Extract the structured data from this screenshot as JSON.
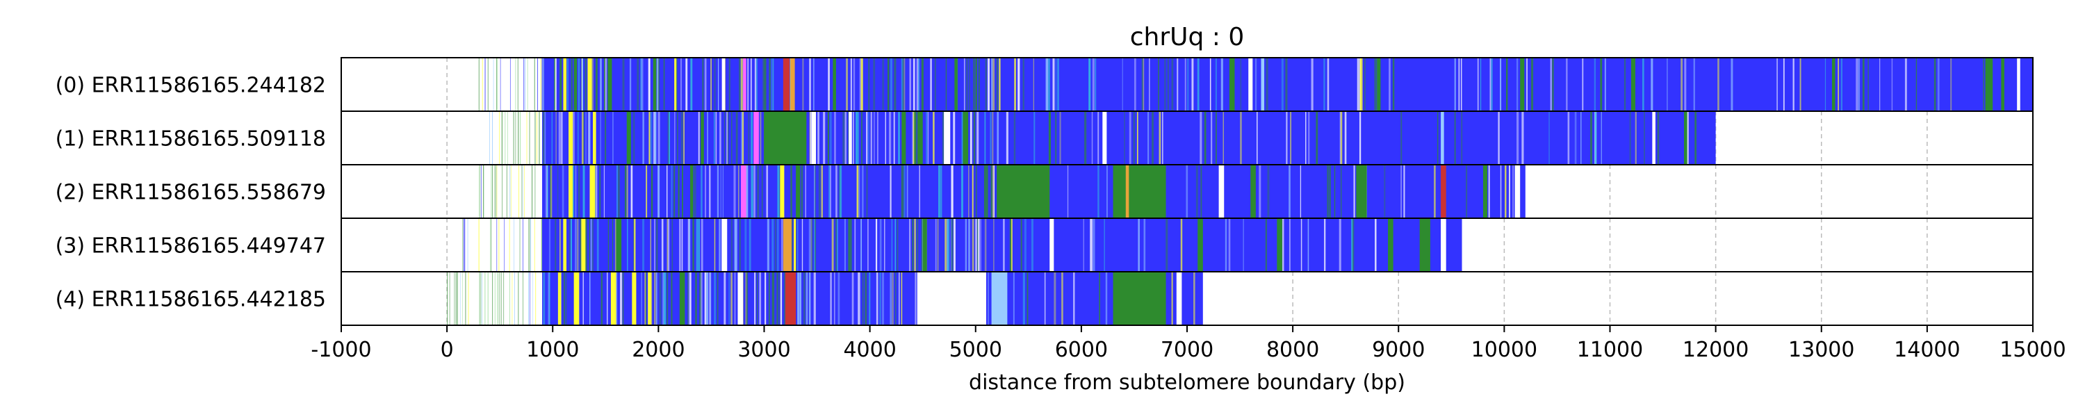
{
  "chart_data": {
    "type": "heatmap",
    "title": "chrUq : 0",
    "xlabel": "distance from subtelomere boundary (bp)",
    "ylabel": "",
    "xlim": [
      -1000,
      15000
    ],
    "x_ticks": [
      -1000,
      0,
      1000,
      2000,
      3000,
      4000,
      5000,
      6000,
      7000,
      8000,
      9000,
      10000,
      11000,
      12000,
      13000,
      14000,
      15000
    ],
    "x_tick_labels": [
      "-1000",
      "0",
      "1000",
      "2000",
      "3000",
      "4000",
      "5000",
      "6000",
      "7000",
      "8000",
      "9000",
      "10000",
      "11000",
      "12000",
      "13000",
      "14000",
      "15000"
    ],
    "grid": "vertical dashed at x ticks",
    "colors": {
      "blue": "#3333ff",
      "green": "#2e8b2e",
      "yellow": "#ffff33",
      "orange": "#e8a33a",
      "magenta": "#ff66ff",
      "red": "#cc3333",
      "white": "#ffffff",
      "lightblue": "#99ccff",
      "cyan": "#33ccdd",
      "lightgreen": "#99dd99",
      "grid": "#bbbbbb",
      "frame": "#000000"
    },
    "series": [
      {
        "name": "(0) ERR11586165.244182",
        "read_start": 300,
        "read_end": 15000,
        "sparse_end": 900,
        "blocks": [
          [
            900,
            15000,
            "blue"
          ],
          [
            1100,
            1130,
            "yellow"
          ],
          [
            1330,
            1370,
            "yellow"
          ],
          [
            1200,
            1230,
            "green"
          ],
          [
            1520,
            1560,
            "green"
          ],
          [
            1950,
            1980,
            "green"
          ],
          [
            2150,
            2170,
            "yellow"
          ],
          [
            2800,
            2830,
            "magenta"
          ],
          [
            3180,
            3240,
            "red"
          ],
          [
            3250,
            3290,
            "orange"
          ],
          [
            2600,
            2630,
            "white"
          ],
          [
            3650,
            3680,
            "green"
          ],
          [
            4800,
            4830,
            "green"
          ],
          [
            7400,
            7450,
            "green"
          ],
          [
            7580,
            7620,
            "white"
          ],
          [
            7700,
            7730,
            "lightblue"
          ],
          [
            8800,
            8830,
            "green"
          ],
          [
            10150,
            10190,
            "green"
          ],
          [
            11200,
            11240,
            "green"
          ],
          [
            13100,
            13130,
            "green"
          ],
          [
            14550,
            14620,
            "green"
          ],
          [
            14700,
            14730,
            "green"
          ],
          [
            14850,
            14880,
            "white"
          ]
        ]
      },
      {
        "name": "(1) ERR11586165.509118",
        "read_start": 400,
        "read_end": 12000,
        "sparse_end": 900,
        "blocks": [
          [
            900,
            12000,
            "blue"
          ],
          [
            1150,
            1190,
            "yellow"
          ],
          [
            1380,
            1410,
            "yellow"
          ],
          [
            1700,
            1740,
            "green"
          ],
          [
            2400,
            2430,
            "green"
          ],
          [
            2900,
            2950,
            "magenta"
          ],
          [
            3000,
            3400,
            "green"
          ],
          [
            3450,
            3490,
            "white"
          ],
          [
            3800,
            3830,
            "white"
          ],
          [
            4300,
            4340,
            "green"
          ],
          [
            4450,
            4500,
            "green"
          ],
          [
            4700,
            4760,
            "white"
          ],
          [
            4880,
            4930,
            "green"
          ],
          [
            6200,
            6240,
            "white"
          ],
          [
            9400,
            9430,
            "lightblue"
          ],
          [
            11400,
            11430,
            "white"
          ],
          [
            11700,
            11730,
            "green"
          ]
        ]
      },
      {
        "name": "(2) ERR11586165.558679",
        "read_start": 250,
        "read_end": 10200,
        "sparse_end": 900,
        "blocks": [
          [
            900,
            10200,
            "blue"
          ],
          [
            1150,
            1190,
            "yellow"
          ],
          [
            1350,
            1400,
            "yellow"
          ],
          [
            2300,
            2330,
            "green"
          ],
          [
            2780,
            2830,
            "magenta"
          ],
          [
            3150,
            3190,
            "yellow"
          ],
          [
            3300,
            3340,
            "green"
          ],
          [
            5200,
            5700,
            "green"
          ],
          [
            6300,
            6800,
            "green"
          ],
          [
            6420,
            6450,
            "orange"
          ],
          [
            7300,
            7350,
            "white"
          ],
          [
            7600,
            7650,
            "green"
          ],
          [
            8600,
            8700,
            "green"
          ],
          [
            9400,
            9450,
            "red"
          ],
          [
            9800,
            9840,
            "green"
          ],
          [
            10100,
            10150,
            "white"
          ]
        ]
      },
      {
        "name": "(3) ERR11586165.449747",
        "read_start": 100,
        "read_end": 9600,
        "sparse_end": 900,
        "blocks": [
          [
            900,
            9600,
            "blue"
          ],
          [
            1100,
            1130,
            "yellow"
          ],
          [
            1270,
            1310,
            "yellow"
          ],
          [
            1600,
            1650,
            "green"
          ],
          [
            2600,
            2650,
            "white"
          ],
          [
            3180,
            3260,
            "orange"
          ],
          [
            3280,
            3300,
            "yellow"
          ],
          [
            4500,
            4540,
            "green"
          ],
          [
            5700,
            5740,
            "white"
          ],
          [
            7100,
            7150,
            "green"
          ],
          [
            7850,
            7900,
            "green"
          ],
          [
            8900,
            8950,
            "green"
          ],
          [
            9200,
            9300,
            "green"
          ],
          [
            9400,
            9450,
            "white"
          ]
        ]
      },
      {
        "name": "(4) ERR11586165.442185",
        "read_start": 0,
        "read_end": 7150,
        "sparse_end": 900,
        "blocks": [
          [
            900,
            7150,
            "blue"
          ],
          [
            1050,
            1080,
            "yellow"
          ],
          [
            1200,
            1250,
            "yellow"
          ],
          [
            1550,
            1600,
            "yellow"
          ],
          [
            1750,
            1790,
            "yellow"
          ],
          [
            1900,
            1930,
            "yellow"
          ],
          [
            2200,
            2250,
            "green"
          ],
          [
            2750,
            2800,
            "white"
          ],
          [
            3200,
            3300,
            "red"
          ],
          [
            4450,
            5100,
            "white"
          ],
          [
            5150,
            5300,
            "lightblue"
          ],
          [
            6300,
            6800,
            "green"
          ],
          [
            6900,
            6950,
            "white"
          ]
        ]
      }
    ]
  }
}
